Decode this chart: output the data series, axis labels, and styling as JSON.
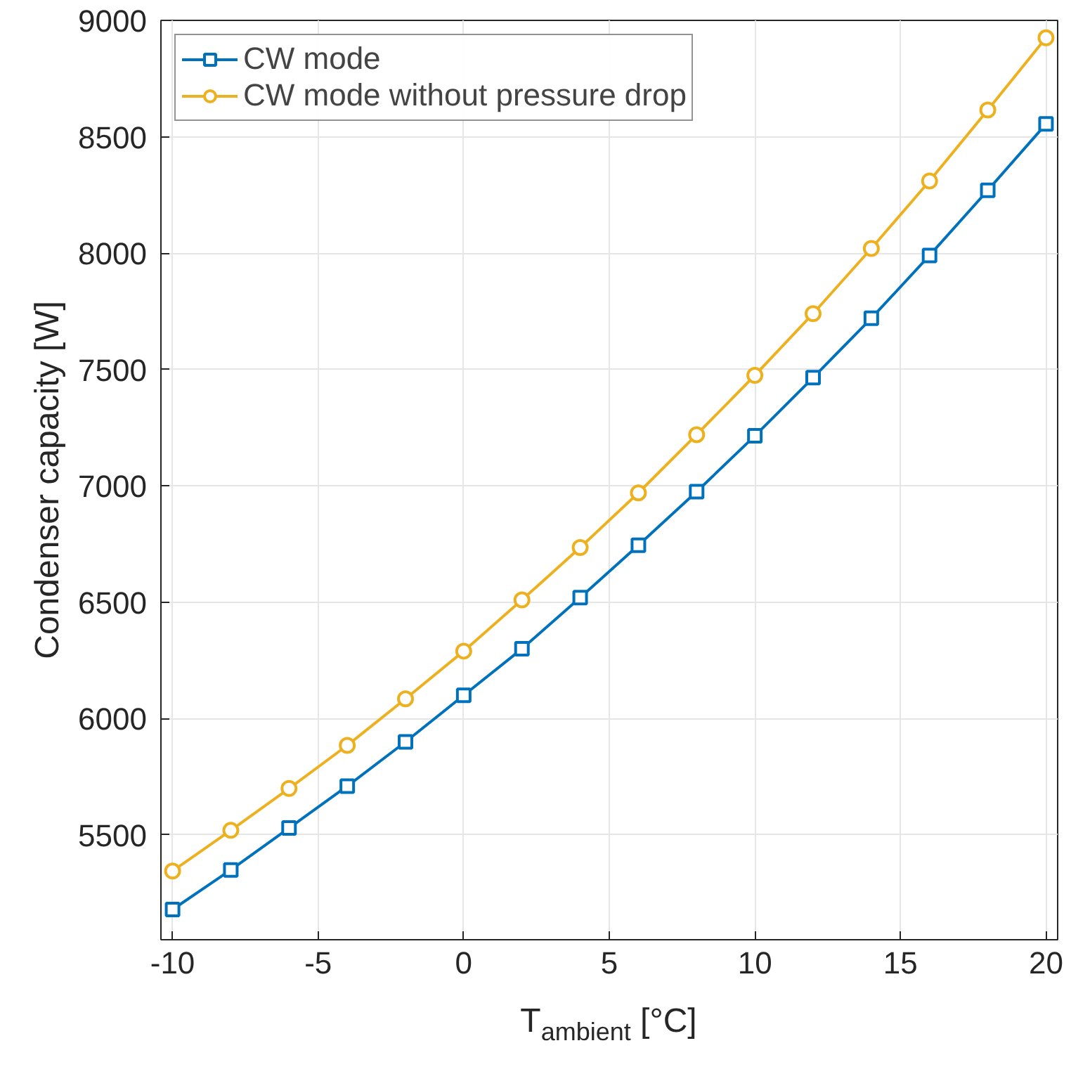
{
  "chart_data": {
    "type": "line",
    "xlabel": "T$_{ambient}$ [°C]",
    "ylabel": "Condenser capacity [W]",
    "x": [
      -10,
      -8,
      -6,
      -4,
      -2,
      0,
      2,
      4,
      6,
      8,
      10,
      12,
      14,
      16,
      18,
      20
    ],
    "series": [
      {
        "name": "CW mode",
        "color": "#0072bd",
        "marker": "square",
        "values": [
          5180,
          5350,
          5530,
          5710,
          5900,
          6100,
          6300,
          6520,
          6745,
          6975,
          7215,
          7465,
          7720,
          7990,
          8270,
          8555
        ]
      },
      {
        "name": "CW mode without pressure drop",
        "color": "#edb120",
        "marker": "circle",
        "values": [
          5345,
          5520,
          5700,
          5885,
          6085,
          6290,
          6510,
          6735,
          6970,
          7220,
          7475,
          7740,
          8020,
          8310,
          8615,
          8925
        ]
      }
    ],
    "xlim": [
      -10.4,
      20.4
    ],
    "ylim": [
      5050,
      9000
    ],
    "xticks": [
      -10,
      -5,
      0,
      5,
      10,
      15,
      20
    ],
    "yticks": [
      5500,
      6000,
      6500,
      7000,
      7500,
      8000,
      8500,
      9000
    ],
    "grid": true,
    "legend": "top left",
    "line_style": "solid"
  }
}
